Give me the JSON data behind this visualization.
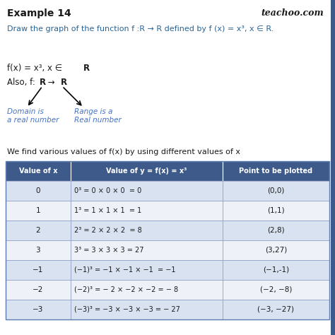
{
  "title": "Example 14",
  "watermark": "teachoo.com",
  "question": "Draw the graph of the function f :R → R defined by f (x) = x³, x ∈ R.",
  "line1_a": "f(x) = x³, x ∈ ",
  "line1_b": "R",
  "line2_prefix": "Also, f: ",
  "line2_R1": "R",
  "line2_arrow": " → ",
  "line2_R2": "R",
  "domain_label": "Domain is\na real number",
  "range_label": "Range is a\nReal number",
  "intro_text": "We find various values of f(x) by using different values of x",
  "table_headers": [
    "Value of x",
    "Value of y = f(x) = x³",
    "Point to be plotted"
  ],
  "table_rows": [
    [
      "0",
      "0³ = 0 × 0 × 0  = 0",
      "(0,0)"
    ],
    [
      "1",
      "1³ = 1 × 1 × 1  = 1",
      "(1,1)"
    ],
    [
      "2",
      "2³ = 2 × 2 × 2  = 8",
      "(2,8)"
    ],
    [
      "3",
      "3³ = 3 × 3 × 3 = 27",
      "(3,27)"
    ],
    [
      "−1",
      "(−1)³ = −1 × −1 × −1  = −1",
      "(−1,-1)"
    ],
    [
      "−2",
      "(−2)³ = − 2 × −2 × −2 = − 8",
      "(−2, −8)"
    ],
    [
      "−3",
      "(−3)³ = −3 × −3 × −3 = − 27",
      "(−3, −27)"
    ]
  ],
  "bg_color": "#ffffff",
  "header_bg": "#3d5a8a",
  "header_text_color": "#ffffff",
  "row_alt_color": "#d9e2f0",
  "row_normal_color": "#eef2f8",
  "title_color": "#1a1a1a",
  "blue_text_color": "#2a6496",
  "black_text_color": "#1a1a1a",
  "italic_blue_color": "#4472c4",
  "table_border_color": "#5a7ab0",
  "right_bar_color": "#3d5a8a"
}
